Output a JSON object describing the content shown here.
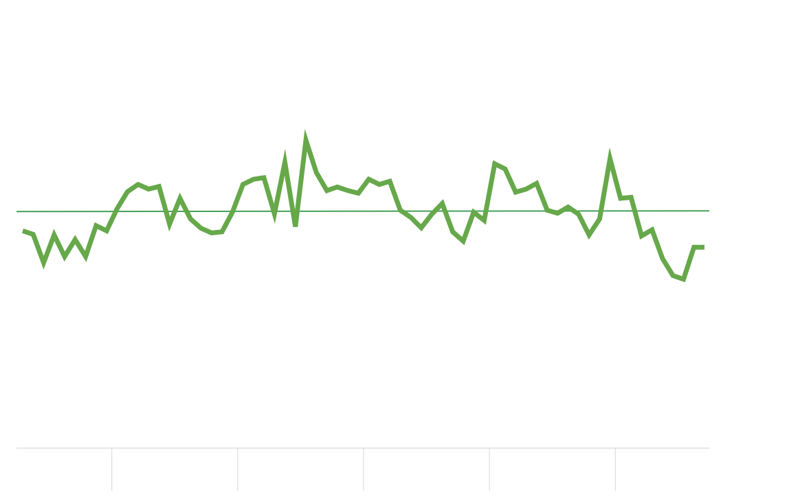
{
  "chart_data": {
    "type": "line",
    "title": "",
    "xlabel": "",
    "ylabel": "",
    "grid": false,
    "legend": "none",
    "x": [
      1,
      2,
      3,
      4,
      5,
      6,
      7,
      8,
      9,
      10,
      11,
      12,
      13,
      14,
      15,
      16,
      17,
      18,
      19,
      20,
      21,
      22,
      23,
      24,
      25,
      26,
      27,
      28,
      29,
      30,
      31,
      32,
      33,
      34,
      35,
      36,
      37,
      38,
      39,
      40,
      41,
      42,
      43,
      44,
      45,
      46,
      47,
      48,
      49,
      50,
      51,
      52,
      53,
      54,
      55,
      56,
      57,
      58,
      59,
      60,
      61,
      62,
      63,
      64,
      65,
      66
    ],
    "series": [
      {
        "values": [
          -0.38,
          -0.45,
          -1.0,
          -0.46,
          -0.88,
          -0.55,
          -0.88,
          -0.28,
          -0.38,
          0.05,
          0.38,
          0.52,
          0.43,
          0.48,
          -0.25,
          0.25,
          -0.15,
          -0.33,
          -0.42,
          -0.4,
          -0.02,
          0.52,
          0.62,
          0.65,
          -0.05,
          0.95,
          -0.3,
          1.38,
          0.75,
          0.4,
          0.47,
          0.4,
          0.35,
          0.62,
          0.52,
          0.58,
          0.02,
          -0.12,
          -0.32,
          -0.06,
          0.15,
          -0.4,
          -0.58,
          -0.02,
          -0.18,
          0.92,
          0.82,
          0.37,
          0.43,
          0.54,
          0.02,
          -0.04,
          0.08,
          -0.06,
          -0.46,
          -0.15,
          1.02,
          0.25,
          0.27,
          -0.48,
          -0.36,
          -0.92,
          -1.25,
          -1.32,
          -0.7,
          -0.7
        ],
        "color": "#66a84a"
      }
    ],
    "reference_line": {
      "value": 0,
      "color": "#43a158"
    },
    "ylim": [
      -4.6,
      4.1
    ],
    "x_ticks": [
      1,
      10,
      22,
      34,
      46,
      58
    ]
  }
}
